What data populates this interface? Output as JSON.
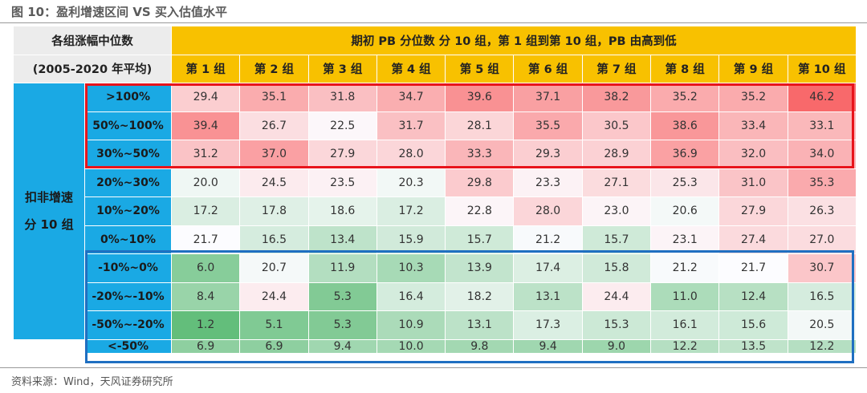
{
  "title": "图 10：盈利增速区间 VS 买入估值水平",
  "header": {
    "left_line1": "各组涨幅中位数",
    "left_line2": "(2005-2020 年平均)",
    "top": "期初 PB 分位数  分 10 组，第 1 组到第 10 组，PB 由高到低",
    "groups": [
      "第 1 组",
      "第 2 组",
      "第 3 组",
      "第 4 组",
      "第 5 组",
      "第 6 组",
      "第 7 组",
      "第 8 组",
      "第 9 组",
      "第 10 组"
    ]
  },
  "side": {
    "line1": "扣非增速",
    "line2": "分 10 组"
  },
  "rows": [
    {
      "label": ">100%",
      "values": [
        "29.4",
        "35.1",
        "31.8",
        "34.7",
        "39.6",
        "37.1",
        "38.2",
        "35.2",
        "35.2",
        "46.2"
      ]
    },
    {
      "label": "50%~100%",
      "values": [
        "39.4",
        "26.7",
        "22.5",
        "31.7",
        "28.1",
        "35.5",
        "30.5",
        "38.6",
        "33.4",
        "33.1"
      ]
    },
    {
      "label": "30%~50%",
      "values": [
        "31.2",
        "37.0",
        "27.9",
        "28.0",
        "33.3",
        "29.3",
        "28.9",
        "36.9",
        "32.0",
        "34.0"
      ]
    },
    {
      "label": "20%~30%",
      "values": [
        "20.0",
        "24.5",
        "23.5",
        "20.3",
        "29.8",
        "23.3",
        "27.1",
        "25.3",
        "31.0",
        "35.3"
      ]
    },
    {
      "label": "10%~20%",
      "values": [
        "17.2",
        "17.8",
        "18.6",
        "17.2",
        "22.8",
        "28.0",
        "23.0",
        "20.6",
        "27.9",
        "26.3"
      ]
    },
    {
      "label": "0%~10%",
      "values": [
        "21.7",
        "16.5",
        "13.4",
        "15.9",
        "15.7",
        "21.2",
        "15.7",
        "23.1",
        "27.4",
        "27.0"
      ]
    },
    {
      "label": "-10%~0%",
      "values": [
        "6.0",
        "20.7",
        "11.9",
        "10.3",
        "13.9",
        "17.4",
        "15.8",
        "21.2",
        "21.7",
        "30.7"
      ]
    },
    {
      "label": "-20%~-10%",
      "values": [
        "8.4",
        "24.4",
        "5.3",
        "16.4",
        "18.2",
        "13.1",
        "24.4",
        "11.0",
        "12.4",
        "16.5"
      ]
    },
    {
      "label": "-50%~-20%",
      "values": [
        "1.2",
        "5.1",
        "5.3",
        "10.9",
        "13.1",
        "17.3",
        "15.3",
        "16.1",
        "15.6",
        "20.5"
      ]
    },
    {
      "label": "<-50%",
      "values": [
        "6.9",
        "6.9",
        "9.4",
        "10.0",
        "9.8",
        "9.4",
        "9.0",
        "12.2",
        "13.5",
        "12.2"
      ]
    }
  ],
  "colors": {
    "header_yellow": "#f8c100",
    "label_blue": "#1aa9e4",
    "header_gray": "#ececec",
    "highlight_red": "#e8141b",
    "highlight_blue": "#1f6fc1",
    "scale_low": "#63be7b",
    "scale_mid": "#fcfcff",
    "scale_high": "#f8696b"
  },
  "source": "资料来源：Wind，天风证券研究所"
}
